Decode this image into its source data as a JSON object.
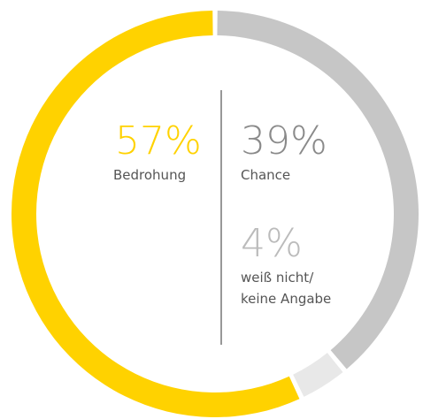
{
  "chart_data": {
    "type": "pie",
    "categories": [
      "Chance",
      "weiß nicht/\nkeine Angabe",
      "Bedrohung"
    ],
    "values": [
      39,
      4,
      57
    ],
    "value_labels": [
      "39%",
      "4%",
      "57%"
    ],
    "colors": [
      "#c6c6c6",
      "#e8e8e8",
      "#ffd200"
    ]
  }
}
